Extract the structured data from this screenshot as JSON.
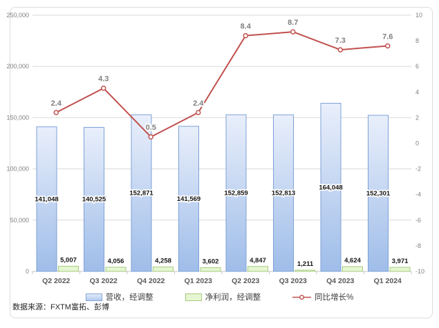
{
  "chart_data": {
    "type": "combo-bar-line",
    "title": "",
    "categories": [
      "Q2 2022",
      "Q3 2022",
      "Q4 2022",
      "Q1 2023",
      "Q2 2023",
      "Q3 2023",
      "Q4 2023",
      "Q1 2024"
    ],
    "series": [
      {
        "name": "营收，经调整",
        "type": "bar",
        "axis": "left",
        "values": [
          141048,
          140525,
          152871,
          141569,
          152859,
          152813,
          164048,
          152301
        ]
      },
      {
        "name": "净利润，经调整",
        "type": "bar",
        "axis": "left",
        "values": [
          5007,
          4056,
          4258,
          3602,
          4847,
          1211,
          4624,
          3971
        ]
      },
      {
        "name": "同比增长%",
        "type": "line",
        "axis": "right",
        "values": [
          2.4,
          4.3,
          0.5,
          2.4,
          8.4,
          8.7,
          7.3,
          7.6
        ]
      }
    ],
    "left_axis": {
      "min": 0,
      "max": 250000,
      "step": 50000,
      "tick_labels": [
        "0",
        "50,000",
        "100,000",
        "150,000",
        "200,000",
        "250,000"
      ]
    },
    "right_axis": {
      "min": -10,
      "max": 10,
      "step": 2,
      "tick_labels": [
        "-10",
        "-8",
        "-6",
        "-4",
        "-2",
        "0",
        "2",
        "4",
        "6",
        "8",
        "10"
      ]
    },
    "grid": true,
    "legend_position": "bottom"
  },
  "legend": {
    "items": [
      {
        "label": "营收，经调整",
        "swatch": "bar-blue"
      },
      {
        "label": "净利润，经调整",
        "swatch": "bar-green"
      },
      {
        "label": "同比增长%",
        "swatch": "line-red"
      }
    ]
  },
  "source": {
    "label": "数据来源：FXTM富拓、彭博"
  },
  "colors": {
    "revenue_fill_top": "#e9effb",
    "revenue_fill_bottom": "#9fbde9",
    "revenue_border": "#7da0d6",
    "profit_fill": "#e6f6d2",
    "profit_border": "#a6ca7d",
    "growth_line": "#c0504d",
    "marker_fill": "#ffffff",
    "grid_line": "#d9d9d9",
    "axis_line": "#c6c6c6",
    "axis_text": "#7f7f7f",
    "category_text": "#595959",
    "data_label": "#141414",
    "line_label": "#7f7f7f"
  }
}
